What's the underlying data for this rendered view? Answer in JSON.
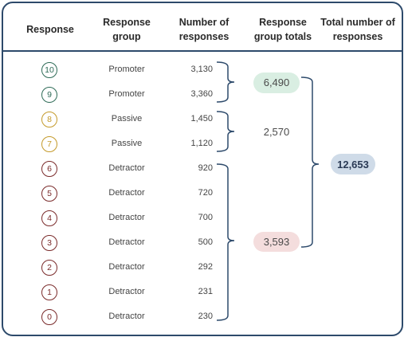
{
  "colors": {
    "promoter": "#2e6b57",
    "passive": "#c49a2a",
    "detractor": "#7a2a2a",
    "border": "#2d4a6b",
    "promoter_highlight": "#d9eee2",
    "detractor_highlight": "#f4dddd",
    "total_highlight": "#cfdbe8"
  },
  "headers": {
    "response": "Response",
    "response_group": "Response group",
    "number_of_responses": "Number of responses",
    "response_group_totals": "Response group totals",
    "total_number_of_responses": "Total number of responses"
  },
  "rows": [
    {
      "response": "10",
      "group": "Promoter",
      "count": "3,130",
      "category": "promoter"
    },
    {
      "response": "9",
      "group": "Promoter",
      "count": "3,360",
      "category": "promoter"
    },
    {
      "response": "8",
      "group": "Passive",
      "count": "1,450",
      "category": "passive"
    },
    {
      "response": "7",
      "group": "Passive",
      "count": "1,120",
      "category": "passive"
    },
    {
      "response": "6",
      "group": "Detractor",
      "count": "920",
      "category": "detractor"
    },
    {
      "response": "5",
      "group": "Detractor",
      "count": "720",
      "category": "detractor"
    },
    {
      "response": "4",
      "group": "Detractor",
      "count": "700",
      "category": "detractor"
    },
    {
      "response": "3",
      "group": "Detractor",
      "count": "500",
      "category": "detractor"
    },
    {
      "response": "2",
      "group": "Detractor",
      "count": "292",
      "category": "detractor"
    },
    {
      "response": "1",
      "group": "Detractor",
      "count": "231",
      "category": "detractor"
    },
    {
      "response": "0",
      "group": "Detractor",
      "count": "230",
      "category": "detractor"
    }
  ],
  "group_totals": {
    "promoter": "6,490",
    "passive": "2,570",
    "detractor": "3,593"
  },
  "grand_total": "12,653"
}
